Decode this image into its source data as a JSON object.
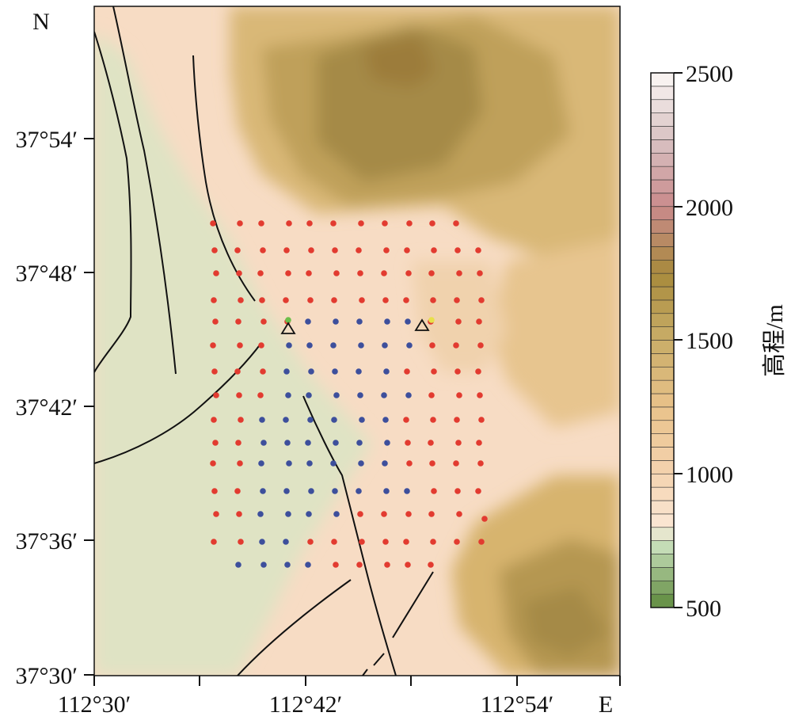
{
  "map": {
    "north_label": "N",
    "east_label": "E",
    "lat_ticks": [
      "37°54′",
      "37°48′",
      "37°42′",
      "37°36′",
      "37°30′"
    ],
    "lon_ticks": [
      "112°30′",
      "112°42′",
      "112°54′"
    ]
  },
  "colorbar": {
    "title": "高程/m",
    "labels": [
      "2500",
      "2000",
      "1500",
      "1000",
      "500"
    ],
    "min": 500,
    "max": 2500,
    "step": 50,
    "colors": {
      "green_low": "#5e8a3c",
      "green_high": "#cfe5c4",
      "cream": "#fbe7d6",
      "tan": "#e9c28a",
      "olive": "#a88a3c",
      "pink": "#c98a8c",
      "white": "#fbf7f5"
    }
  },
  "legend_points": {
    "red": "#e23b30",
    "blue": "#3d4f9c",
    "green": "#6cbf4a",
    "yellow": "#e8e04a"
  },
  "stations": [
    {
      "type": "triangle",
      "label": ""
    },
    {
      "type": "triangle",
      "label": ""
    }
  ]
}
